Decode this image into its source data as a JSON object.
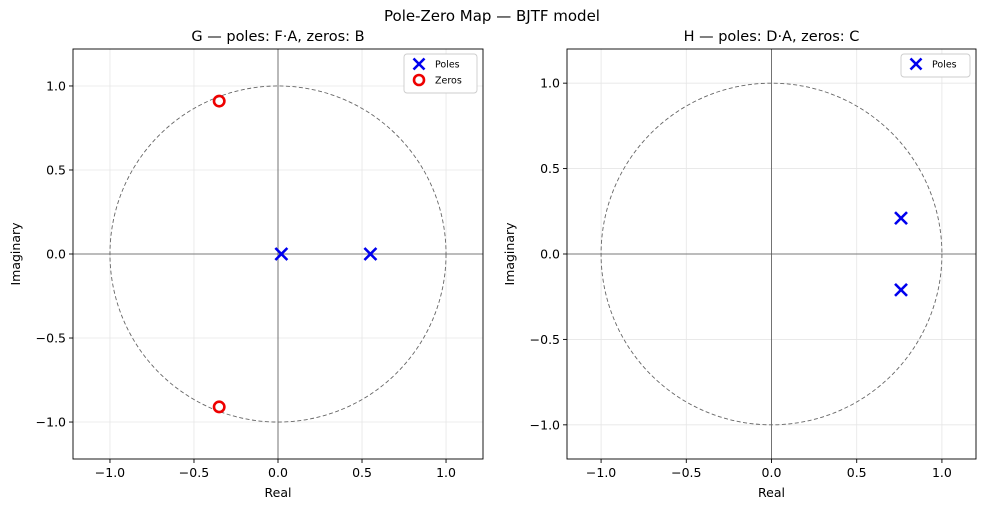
{
  "figure": {
    "suptitle": "Pole-Zero Map  —  BJTF model"
  },
  "colors": {
    "poles": "#0000ee",
    "zeros": "#ee0000",
    "unit_circle": "#666666",
    "axes_lines": "#555555",
    "grid": "#e6e6e6"
  },
  "chart_data": [
    {
      "type": "scatter",
      "title": "G  —  poles: F·A,  zeros: B",
      "xlabel": "Real",
      "ylabel": "Imaginary",
      "xlim": [
        -1.22,
        1.22
      ],
      "ylim": [
        -1.22,
        1.22
      ],
      "xticks": [
        -1.0,
        -0.5,
        0.0,
        0.5,
        1.0
      ],
      "yticks": [
        -1.0,
        -0.5,
        0.0,
        0.5,
        1.0
      ],
      "xtick_labels": [
        "−1.0",
        "−0.5",
        "0.0",
        "0.5",
        "1.0"
      ],
      "ytick_labels": [
        "−1.0",
        "−0.5",
        "0.0",
        "0.5",
        "1.0"
      ],
      "grid": true,
      "unit_circle": true,
      "legend_position": "top-right",
      "series": [
        {
          "name": "Poles",
          "marker": "x",
          "points": [
            [
              0.02,
              0.0
            ],
            [
              0.55,
              0.0
            ]
          ]
        },
        {
          "name": "Zeros",
          "marker": "o",
          "points": [
            [
              -0.35,
              0.91
            ],
            [
              -0.35,
              -0.91
            ]
          ]
        }
      ]
    },
    {
      "type": "scatter",
      "title": "H  —  poles: D·A,  zeros: C",
      "xlabel": "Real",
      "ylabel": "Imaginary",
      "xlim": [
        -1.2,
        1.2
      ],
      "ylim": [
        -1.2,
        1.2
      ],
      "xticks": [
        -1.0,
        -0.5,
        0.0,
        0.5,
        1.0
      ],
      "yticks": [
        -1.0,
        -0.5,
        0.0,
        0.5,
        1.0
      ],
      "xtick_labels": [
        "−1.0",
        "−0.5",
        "0.0",
        "0.5",
        "1.0"
      ],
      "ytick_labels": [
        "−1.0",
        "−0.5",
        "0.0",
        "0.5",
        "1.0"
      ],
      "grid": true,
      "unit_circle": true,
      "legend_position": "top-right",
      "series": [
        {
          "name": "Poles",
          "marker": "x",
          "points": [
            [
              0.76,
              0.21
            ],
            [
              0.76,
              -0.21
            ]
          ]
        }
      ]
    }
  ]
}
